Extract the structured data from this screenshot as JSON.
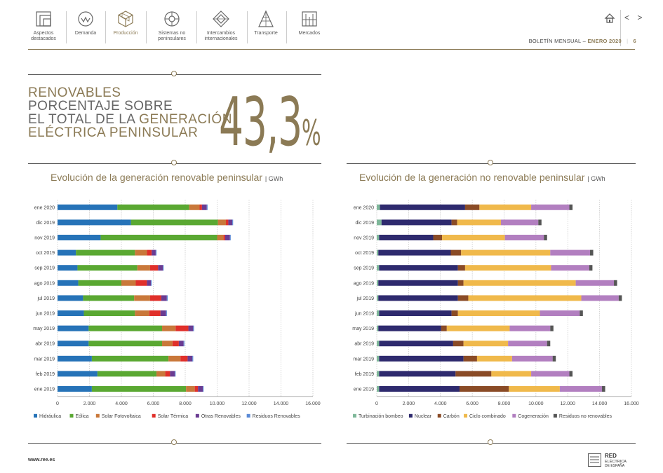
{
  "nav": {
    "items": [
      {
        "label": "Aspectos destacados",
        "lines": [
          "Aspectos",
          "destacados"
        ]
      },
      {
        "label": "Demanda",
        "lines": [
          "Demanda"
        ]
      },
      {
        "label": "Producción",
        "lines": [
          "Producción"
        ],
        "active": true
      },
      {
        "label": "Sistemas no peninsulares",
        "lines": [
          "Sistemas no",
          "peninsulares"
        ]
      },
      {
        "label": "Intercambios internacionales",
        "lines": [
          "Intercambios",
          "internacionales"
        ]
      },
      {
        "label": "Transporte",
        "lines": [
          "Transporte"
        ]
      },
      {
        "label": "Mercados",
        "lines": [
          "Mercados"
        ]
      }
    ],
    "prev_next": "< >"
  },
  "bulletin": {
    "label": "BOLETÍN MENSUAL",
    "sep": "–",
    "month": "ENERO 2020",
    "page": "6"
  },
  "headline": {
    "line1": "RENOVABLES",
    "line2": "PORCENTAJE SOBRE",
    "line3a": "EL TOTAL DE LA ",
    "line3b": "GENERACIÓN",
    "line4": "ELÉCTRICA PENINSULAR",
    "value": "43,3",
    "pct": "%"
  },
  "footer": {
    "url": "www.ree.es",
    "logo_line1": "RED",
    "logo_line2": "ELÉCTRICA",
    "logo_line3": "DE ESPAÑA"
  },
  "chart_data": [
    {
      "type": "bar",
      "orientation": "horizontal",
      "stacked": true,
      "title": "Evolución de la generación renovable peninsular",
      "unit": "GWh",
      "categories": [
        "ene 2020",
        "dic 2019",
        "nov 2019",
        "oct 2019",
        "sep 2019",
        "ago 2019",
        "jul 2019",
        "jun 2019",
        "may 2019",
        "abr 2019",
        "mar 2019",
        "feb 2019",
        "ene 2019"
      ],
      "xlim": [
        0,
        16000
      ],
      "xticks": [
        "0",
        "2.000",
        "4.000",
        "6.000",
        "8.000",
        "10.000",
        "12.000",
        "14.000",
        "16.000"
      ],
      "grid": true,
      "legend": "bottom",
      "series": [
        {
          "name": "Hidráulica",
          "color": "#2673b8",
          "values": [
            3750,
            4600,
            2700,
            1150,
            1250,
            1300,
            1600,
            1650,
            1950,
            1950,
            2150,
            2500,
            2150
          ]
        },
        {
          "name": "Eólica",
          "color": "#5aa832",
          "values": [
            4500,
            5450,
            7300,
            3700,
            3750,
            2700,
            3200,
            3200,
            4600,
            4600,
            4800,
            3700,
            5900
          ]
        },
        {
          "name": "Solar Fotovoltaica",
          "color": "#c9783a",
          "values": [
            650,
            500,
            400,
            750,
            800,
            900,
            1000,
            900,
            850,
            650,
            750,
            550,
            550
          ]
        },
        {
          "name": "Solar Térmica",
          "color": "#e0302a",
          "values": [
            150,
            150,
            100,
            300,
            500,
            700,
            700,
            700,
            800,
            400,
            450,
            300,
            200
          ]
        },
        {
          "name": "Otras Renovables",
          "color": "#6a3c92",
          "values": [
            300,
            250,
            300,
            250,
            300,
            250,
            350,
            350,
            300,
            300,
            300,
            300,
            300
          ]
        },
        {
          "name": "Residuos Renovables",
          "color": "#5b8ad6",
          "values": [
            50,
            50,
            50,
            50,
            50,
            50,
            50,
            50,
            50,
            50,
            50,
            50,
            50
          ]
        }
      ]
    },
    {
      "type": "bar",
      "orientation": "horizontal",
      "stacked": true,
      "title": "Evolución de la generación no renovable peninsular",
      "unit": "GWh",
      "categories": [
        "ene 2020",
        "dic 2019",
        "nov 2019",
        "oct 2019",
        "sep 2019",
        "ago 2019",
        "jul 2019",
        "jun 2019",
        "may 2019",
        "abr 2019",
        "mar 2019",
        "feb 2019",
        "ene 2019"
      ],
      "xlim": [
        0,
        16000
      ],
      "xticks": [
        "0",
        "2.000",
        "4.000",
        "6.000",
        "8.000",
        "10.000",
        "12.000",
        "14.000",
        "16.000"
      ],
      "grid": true,
      "legend": "bottom",
      "series": [
        {
          "name": "Turbinación bombeo",
          "color": "#7fb89a",
          "values": [
            200,
            300,
            150,
            100,
            150,
            100,
            100,
            150,
            100,
            150,
            150,
            150,
            150
          ]
        },
        {
          "name": "Nuclear",
          "color": "#2e2a6e",
          "values": [
            5350,
            4400,
            3400,
            4550,
            4950,
            5000,
            5000,
            4550,
            3950,
            4650,
            5300,
            4800,
            5050
          ]
        },
        {
          "name": "Carbón",
          "color": "#8a4b26",
          "values": [
            900,
            350,
            550,
            650,
            450,
            350,
            650,
            400,
            350,
            650,
            850,
            2250,
            3100
          ]
        },
        {
          "name": "Ciclo combinado",
          "color": "#f0b94b",
          "values": [
            3250,
            2750,
            3950,
            5600,
            5400,
            7050,
            7100,
            5150,
            3950,
            2800,
            2200,
            2500,
            3200
          ]
        },
        {
          "name": "Cogeneración",
          "color": "#b27fc0",
          "values": [
            2400,
            2350,
            2450,
            2500,
            2400,
            2400,
            2350,
            2500,
            2550,
            2450,
            2550,
            2400,
            2650
          ]
        },
        {
          "name": "Residuos no renovables",
          "color": "#555555",
          "values": [
            200,
            200,
            200,
            200,
            200,
            200,
            200,
            200,
            200,
            200,
            200,
            200,
            200
          ]
        }
      ]
    }
  ]
}
